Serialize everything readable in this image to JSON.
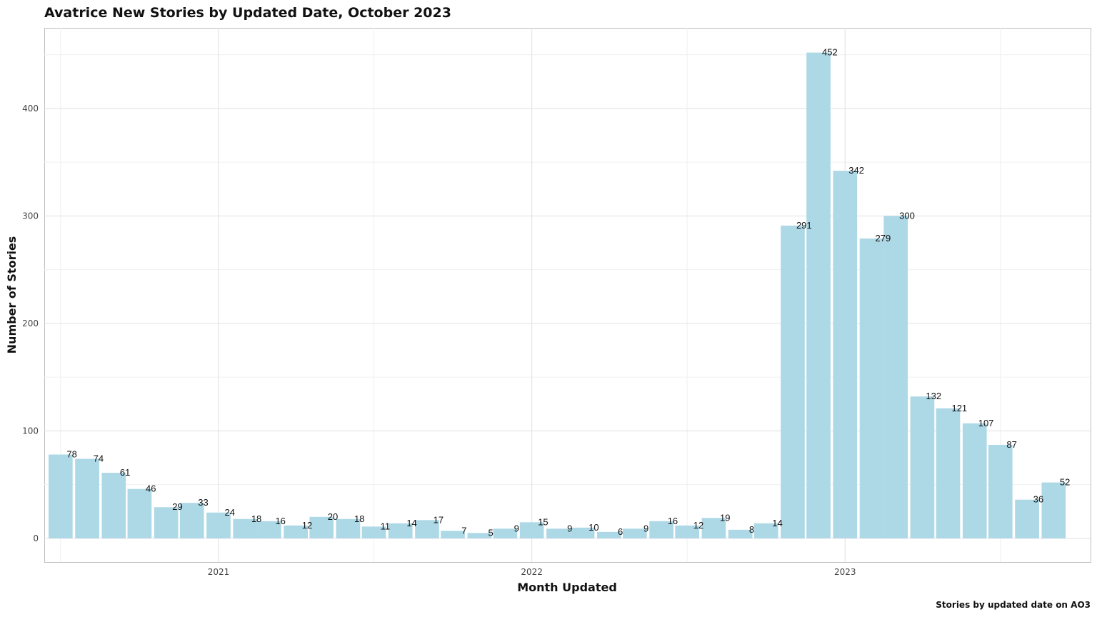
{
  "chart_data": {
    "type": "bar",
    "title": "Avatrice New Stories by Updated Date, October 2023",
    "xlabel": "Month Updated",
    "ylabel": "Number of Stories",
    "caption": "Stories by updated date on AO3",
    "bar_color": "#add8e6",
    "grid": true,
    "ylim": [
      -22,
      475
    ],
    "yticks": [
      0,
      100,
      200,
      300,
      400
    ],
    "xticks": [
      {
        "label": "2021",
        "date": "2021-01-01"
      },
      {
        "label": "2022",
        "date": "2022-01-01"
      },
      {
        "label": "2023",
        "date": "2023-01-01"
      }
    ],
    "categories": [
      "2020-07",
      "2020-08",
      "2020-09",
      "2020-10",
      "2020-11",
      "2020-12",
      "2021-01",
      "2021-02",
      "2021-03",
      "2021-04",
      "2021-05",
      "2021-06",
      "2021-07",
      "2021-08",
      "2021-09",
      "2021-10",
      "2021-11",
      "2021-12",
      "2022-01",
      "2022-02",
      "2022-03",
      "2022-04",
      "2022-05",
      "2022-06",
      "2022-07",
      "2022-08",
      "2022-09",
      "2022-10",
      "2022-11",
      "2022-12",
      "2023-01",
      "2023-02",
      "2023-03",
      "2023-04",
      "2023-05",
      "2023-06",
      "2023-07",
      "2023-08",
      "2023-09"
    ],
    "values": [
      78,
      74,
      61,
      46,
      29,
      33,
      24,
      18,
      16,
      12,
      20,
      18,
      11,
      14,
      17,
      7,
      5,
      9,
      15,
      9,
      10,
      6,
      9,
      16,
      12,
      19,
      8,
      14,
      291,
      452,
      342,
      279,
      300,
      132,
      121,
      107,
      87,
      36,
      52
    ]
  }
}
